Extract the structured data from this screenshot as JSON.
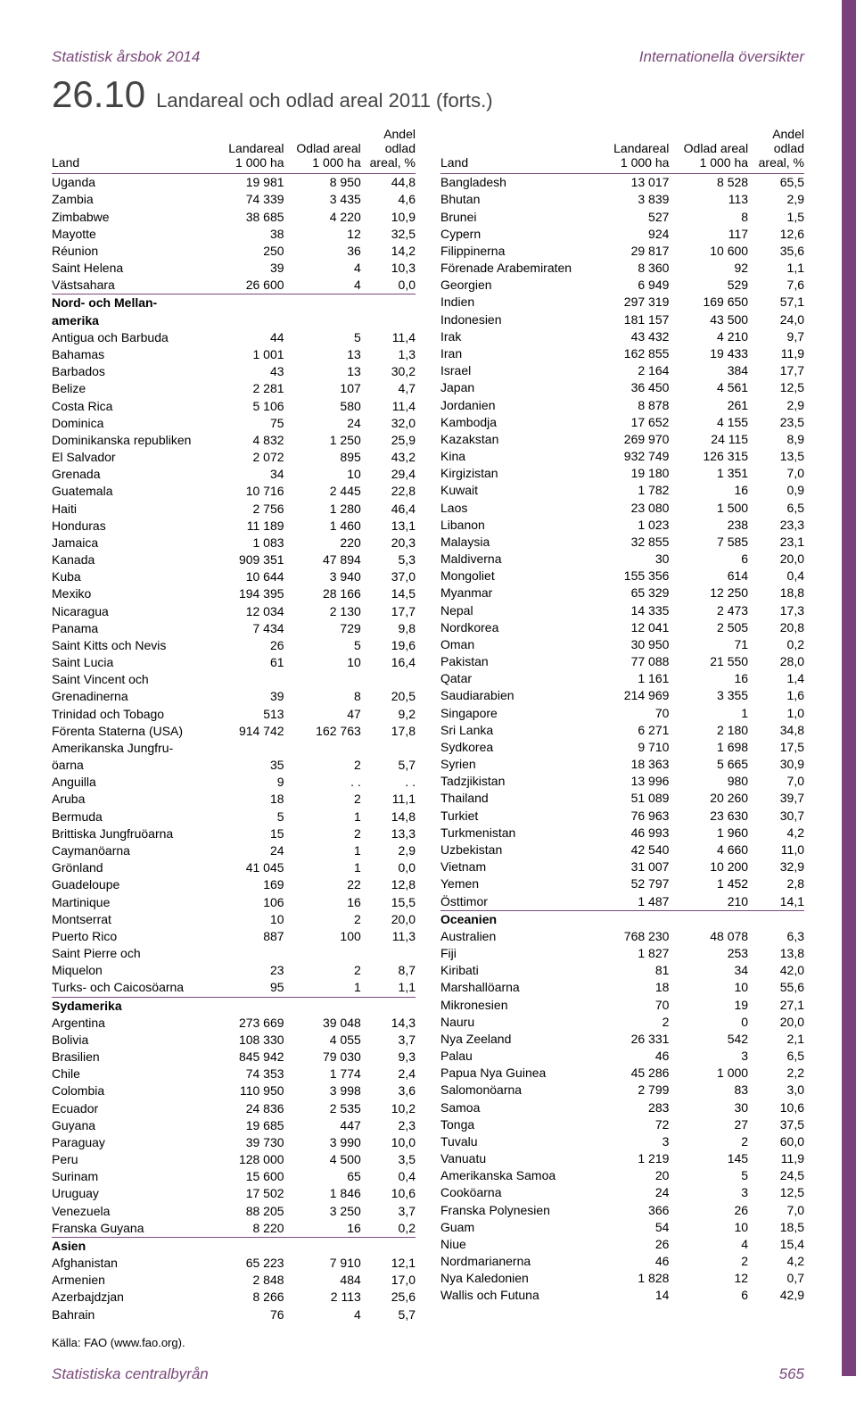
{
  "doc_title_left": "Statistisk årsbok 2014",
  "doc_title_right": "Internationella översikter",
  "chapter_number": "26.10",
  "chapter_title": "Landareal och odlad areal 2011 (forts.)",
  "headers": {
    "land": "Land",
    "landareal": "Landareal",
    "odlad": "Odlad areal",
    "andel1": "Andel",
    "andel2": "odlad",
    "andel3": "areal, %",
    "unit": "1 000 ha"
  },
  "source_label": "Källa: FAO (",
  "source_link_text": "www.fao.org",
  "source_suffix": ").",
  "footer_left": "Statistiska centralbyrån",
  "page_number": "565",
  "left_rows": [
    [
      "Uganda",
      "19 981",
      "8 950",
      "44,8"
    ],
    [
      "Zambia",
      "74 339",
      "3 435",
      "4,6"
    ],
    [
      "Zimbabwe",
      "38 685",
      "4 220",
      "10,9"
    ],
    [
      "Mayotte",
      "38",
      "12",
      "32,5"
    ],
    [
      "Réunion",
      "250",
      "36",
      "14,2"
    ],
    [
      "Saint Helena",
      "39",
      "4",
      "10,3"
    ],
    [
      "Västsahara",
      "26 600",
      "4",
      "0,0"
    ],
    [
      "__SECT",
      "Nord- och Mellan-",
      "",
      "",
      ""
    ],
    [
      "__CONT",
      "amerika",
      "",
      "",
      ""
    ],
    [
      "Antigua och Barbuda",
      "44",
      "5",
      "11,4"
    ],
    [
      "Bahamas",
      "1 001",
      "13",
      "1,3"
    ],
    [
      "Barbados",
      "43",
      "13",
      "30,2"
    ],
    [
      "Belize",
      "2 281",
      "107",
      "4,7"
    ],
    [
      "Costa Rica",
      "5 106",
      "580",
      "11,4"
    ],
    [
      "Dominica",
      "75",
      "24",
      "32,0"
    ],
    [
      "Dominikanska republiken",
      "4 832",
      "1 250",
      "25,9"
    ],
    [
      "El Salvador",
      "2 072",
      "895",
      "43,2"
    ],
    [
      "Grenada",
      "34",
      "10",
      "29,4"
    ],
    [
      "Guatemala",
      "10 716",
      "2 445",
      "22,8"
    ],
    [
      "Haiti",
      "2 756",
      "1 280",
      "46,4"
    ],
    [
      "Honduras",
      "11 189",
      "1 460",
      "13,1"
    ],
    [
      "Jamaica",
      "1 083",
      "220",
      "20,3"
    ],
    [
      "Kanada",
      "909 351",
      "47 894",
      "5,3"
    ],
    [
      "Kuba",
      "10 644",
      "3 940",
      "37,0"
    ],
    [
      "Mexiko",
      "194 395",
      "28 166",
      "14,5"
    ],
    [
      "Nicaragua",
      "12 034",
      "2 130",
      "17,7"
    ],
    [
      "Panama",
      "7 434",
      "729",
      "9,8"
    ],
    [
      "Saint Kitts och Nevis",
      "26",
      "5",
      "19,6"
    ],
    [
      "Saint Lucia",
      "61",
      "10",
      "16,4"
    ],
    [
      "Saint Vincent och",
      "",
      "",
      ""
    ],
    [
      "Grenadinerna",
      "39",
      "8",
      "20,5"
    ],
    [
      "Trinidad och Tobago",
      "513",
      "47",
      "9,2"
    ],
    [
      "Förenta Staterna (USA)",
      "914 742",
      "162 763",
      "17,8"
    ],
    [
      "Amerikanska Jungfru-",
      "",
      "",
      ""
    ],
    [
      "öarna",
      "35",
      "2",
      "5,7"
    ],
    [
      "Anguilla",
      "9",
      ". .",
      ". ."
    ],
    [
      "Aruba",
      "18",
      "2",
      "11,1"
    ],
    [
      "Bermuda",
      "5",
      "1",
      "14,8"
    ],
    [
      "Brittiska Jungfruöarna",
      "15",
      "2",
      "13,3"
    ],
    [
      "Caymanöarna",
      "24",
      "1",
      "2,9"
    ],
    [
      "Grönland",
      "41 045",
      "1",
      "0,0"
    ],
    [
      "Guadeloupe",
      "169",
      "22",
      "12,8"
    ],
    [
      "Martinique",
      "106",
      "16",
      "15,5"
    ],
    [
      "Montserrat",
      "10",
      "2",
      "20,0"
    ],
    [
      "Puerto Rico",
      "887",
      "100",
      "11,3"
    ],
    [
      "Saint Pierre och",
      "",
      "",
      ""
    ],
    [
      "Miquelon",
      "23",
      "2",
      "8,7"
    ],
    [
      "Turks- och Caicosöarna",
      "95",
      "1",
      "1,1"
    ],
    [
      "__SECT",
      "Sydamerika",
      "",
      "",
      ""
    ],
    [
      "Argentina",
      "273 669",
      "39 048",
      "14,3"
    ],
    [
      "Bolivia",
      "108 330",
      "4 055",
      "3,7"
    ],
    [
      "Brasilien",
      "845 942",
      "79 030",
      "9,3"
    ],
    [
      "Chile",
      "74 353",
      "1 774",
      "2,4"
    ],
    [
      "Colombia",
      "110 950",
      "3 998",
      "3,6"
    ],
    [
      "Ecuador",
      "24 836",
      "2 535",
      "10,2"
    ],
    [
      "Guyana",
      "19 685",
      "447",
      "2,3"
    ],
    [
      "Paraguay",
      "39 730",
      "3 990",
      "10,0"
    ],
    [
      "Peru",
      "128 000",
      "4 500",
      "3,5"
    ],
    [
      "Surinam",
      "15 600",
      "65",
      "0,4"
    ],
    [
      "Uruguay",
      "17 502",
      "1 846",
      "10,6"
    ],
    [
      "Venezuela",
      "88 205",
      "3 250",
      "3,7"
    ],
    [
      "Franska Guyana",
      "8 220",
      "16",
      "0,2"
    ],
    [
      "__SECT",
      "Asien",
      "",
      "",
      ""
    ],
    [
      "Afghanistan",
      "65 223",
      "7 910",
      "12,1"
    ],
    [
      "Armenien",
      "2 848",
      "484",
      "17,0"
    ],
    [
      "Azerbajdzjan",
      "8 266",
      "2 113",
      "25,6"
    ],
    [
      "Bahrain",
      "76",
      "4",
      "5,7"
    ]
  ],
  "right_rows": [
    [
      "Bangladesh",
      "13 017",
      "8 528",
      "65,5"
    ],
    [
      "Bhutan",
      "3 839",
      "113",
      "2,9"
    ],
    [
      "Brunei",
      "527",
      "8",
      "1,5"
    ],
    [
      "Cypern",
      "924",
      "117",
      "12,6"
    ],
    [
      "Filippinerna",
      "29 817",
      "10 600",
      "35,6"
    ],
    [
      "Förenade Arabemiraten",
      "8 360",
      "92",
      "1,1"
    ],
    [
      "Georgien",
      "6 949",
      "529",
      "7,6"
    ],
    [
      "Indien",
      "297 319",
      "169 650",
      "57,1"
    ],
    [
      "Indonesien",
      "181 157",
      "43 500",
      "24,0"
    ],
    [
      "Irak",
      "43 432",
      "4 210",
      "9,7"
    ],
    [
      "Iran",
      "162 855",
      "19 433",
      "11,9"
    ],
    [
      "Israel",
      "2 164",
      "384",
      "17,7"
    ],
    [
      "Japan",
      "36 450",
      "4 561",
      "12,5"
    ],
    [
      "Jordanien",
      "8 878",
      "261",
      "2,9"
    ],
    [
      "Kambodja",
      "17 652",
      "4 155",
      "23,5"
    ],
    [
      "Kazakstan",
      "269 970",
      "24 115",
      "8,9"
    ],
    [
      "Kina",
      "932 749",
      "126 315",
      "13,5"
    ],
    [
      "Kirgizistan",
      "19 180",
      "1 351",
      "7,0"
    ],
    [
      "Kuwait",
      "1 782",
      "16",
      "0,9"
    ],
    [
      "Laos",
      "23 080",
      "1 500",
      "6,5"
    ],
    [
      "Libanon",
      "1 023",
      "238",
      "23,3"
    ],
    [
      "Malaysia",
      "32 855",
      "7 585",
      "23,1"
    ],
    [
      "Maldiverna",
      "30",
      "6",
      "20,0"
    ],
    [
      "Mongoliet",
      "155 356",
      "614",
      "0,4"
    ],
    [
      "Myanmar",
      "65 329",
      "12 250",
      "18,8"
    ],
    [
      "Nepal",
      "14 335",
      "2 473",
      "17,3"
    ],
    [
      "Nordkorea",
      "12 041",
      "2 505",
      "20,8"
    ],
    [
      "Oman",
      "30 950",
      "71",
      "0,2"
    ],
    [
      "Pakistan",
      "77 088",
      "21 550",
      "28,0"
    ],
    [
      "Qatar",
      "1 161",
      "16",
      "1,4"
    ],
    [
      "Saudiarabien",
      "214 969",
      "3 355",
      "1,6"
    ],
    [
      "Singapore",
      "70",
      "1",
      "1,0"
    ],
    [
      "Sri Lanka",
      "6 271",
      "2 180",
      "34,8"
    ],
    [
      "Sydkorea",
      "9 710",
      "1 698",
      "17,5"
    ],
    [
      "Syrien",
      "18 363",
      "5 665",
      "30,9"
    ],
    [
      "Tadzjikistan",
      "13 996",
      "980",
      "7,0"
    ],
    [
      "Thailand",
      "51 089",
      "20 260",
      "39,7"
    ],
    [
      "Turkiet",
      "76 963",
      "23 630",
      "30,7"
    ],
    [
      "Turkmenistan",
      "46 993",
      "1 960",
      "4,2"
    ],
    [
      "Uzbekistan",
      "42 540",
      "4 660",
      "11,0"
    ],
    [
      "Vietnam",
      "31 007",
      "10 200",
      "32,9"
    ],
    [
      "Yemen",
      "52 797",
      "1 452",
      "2,8"
    ],
    [
      "Östtimor",
      "1 487",
      "210",
      "14,1"
    ],
    [
      "__SECT",
      "Oceanien",
      "",
      "",
      ""
    ],
    [
      "Australien",
      "768 230",
      "48 078",
      "6,3"
    ],
    [
      "Fiji",
      "1 827",
      "253",
      "13,8"
    ],
    [
      "Kiribati",
      "81",
      "34",
      "42,0"
    ],
    [
      "Marshallöarna",
      "18",
      "10",
      "55,6"
    ],
    [
      "Mikronesien",
      "70",
      "19",
      "27,1"
    ],
    [
      "Nauru",
      "2",
      "0",
      "20,0"
    ],
    [
      "Nya Zeeland",
      "26 331",
      "542",
      "2,1"
    ],
    [
      "Palau",
      "46",
      "3",
      "6,5"
    ],
    [
      "Papua Nya Guinea",
      "45 286",
      "1 000",
      "2,2"
    ],
    [
      "Salomonöarna",
      "2 799",
      "83",
      "3,0"
    ],
    [
      "Samoa",
      "283",
      "30",
      "10,6"
    ],
    [
      "Tonga",
      "72",
      "27",
      "37,5"
    ],
    [
      "Tuvalu",
      "3",
      "2",
      "60,0"
    ],
    [
      "Vanuatu",
      "1 219",
      "145",
      "11,9"
    ],
    [
      "Amerikanska Samoa",
      "20",
      "5",
      "24,5"
    ],
    [
      "Cooköarna",
      "24",
      "3",
      "12,5"
    ],
    [
      "Franska Polynesien",
      "366",
      "26",
      "7,0"
    ],
    [
      "Guam",
      "54",
      "10",
      "18,5"
    ],
    [
      "Niue",
      "26",
      "4",
      "15,4"
    ],
    [
      "Nordmarianerna",
      "46",
      "2",
      "4,2"
    ],
    [
      "Nya Kaledonien",
      "1 828",
      "12",
      "0,7"
    ],
    [
      "Wallis och Futuna",
      "14",
      "6",
      "42,9"
    ]
  ]
}
